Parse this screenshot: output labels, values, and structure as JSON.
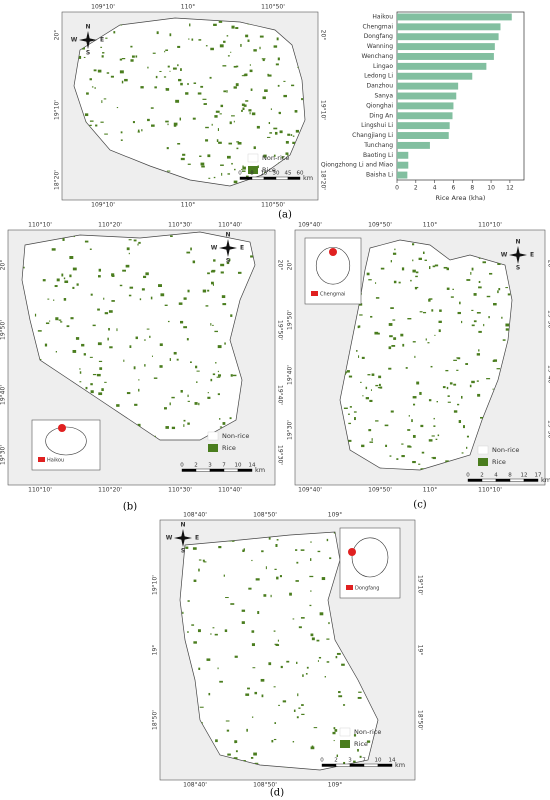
{
  "chart_data": {
    "type": "barh",
    "xlabel": "Rice Area (kha)",
    "color": "#82bfa0",
    "categories": [
      "Haikou",
      "Chengmai",
      "Dongfang",
      "Wanning",
      "Wenchang",
      "Lingao",
      "Ledong Li",
      "Danzhou",
      "Sanya",
      "Qionghai",
      "Ding An",
      "Lingshui Li",
      "Changjiang Li",
      "Tunchang",
      "Baoting Li",
      "Qiongzhong Li and Miao",
      "Baisha Li"
    ],
    "values": [
      12.2,
      11.0,
      10.8,
      10.4,
      10.3,
      9.5,
      8.0,
      6.5,
      6.3,
      6.0,
      5.9,
      5.6,
      5.5,
      3.5,
      1.2,
      1.2,
      1.1
    ],
    "xlim": [
      0,
      13.5
    ],
    "xticks": [
      0,
      2,
      4,
      6,
      8,
      10,
      12
    ]
  },
  "maps": [
    {
      "caption": "(a)",
      "top": [
        "109°10'",
        "110°",
        "110°50'"
      ],
      "side": [
        "20°",
        "19°10'",
        "18°20'"
      ],
      "legend": [
        "Non-rice",
        "Rice"
      ],
      "scale": [
        "0",
        "8",
        "15",
        "30",
        "45",
        "60"
      ],
      "unit": "km",
      "compass": [
        "N",
        "W",
        "E",
        "S"
      ]
    },
    {
      "caption": "(b)",
      "top": [
        "110°10'",
        "110°20'",
        "110°30'",
        "110°40'"
      ],
      "side": [
        "20°",
        "19°50'",
        "19°40'",
        "19°30'"
      ],
      "legend": [
        "Non-rice",
        "Rice"
      ],
      "scale": [
        "0",
        "2",
        "3",
        "7",
        "10",
        "14"
      ],
      "unit": "km",
      "compass": [
        "N",
        "W",
        "E",
        "S"
      ],
      "inset": "Haikou"
    },
    {
      "caption": "(c)",
      "top": [
        "109°40'",
        "109°50'",
        "110°",
        "110°10'"
      ],
      "side": [
        "20°",
        "19°50'",
        "19°40'",
        "19°30'"
      ],
      "legend": [
        "Non-rice",
        "Rice"
      ],
      "scale": [
        "0",
        "2",
        "4",
        "8",
        "12",
        "17"
      ],
      "unit": "km",
      "compass": [
        "N",
        "W",
        "E",
        "S"
      ],
      "inset": "Chengmai"
    },
    {
      "caption": "(d)",
      "top": [
        "108°40'",
        "108°50'",
        "109°"
      ],
      "side": [
        "19°10'",
        "19°",
        "18°50'"
      ],
      "legend": [
        "Non-rice",
        "Rice"
      ],
      "scale": [
        "0",
        "2",
        "3",
        "7",
        "10",
        "14"
      ],
      "unit": "km",
      "compass": [
        "N",
        "W",
        "E",
        "S"
      ],
      "inset": "Dongfang"
    }
  ]
}
